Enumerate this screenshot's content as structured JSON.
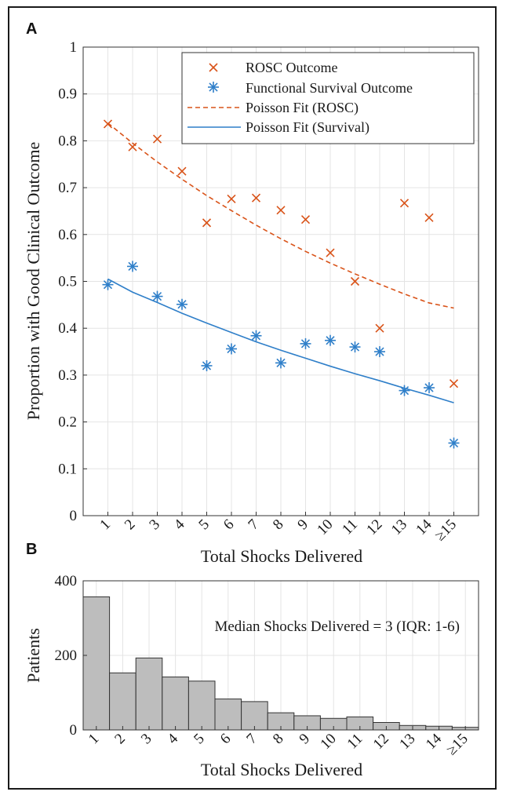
{
  "panels": [
    {
      "label": "A"
    },
    {
      "label": "B"
    }
  ],
  "colors": {
    "rosc": "#d95319",
    "survival": "#2f7fc9",
    "bar_fill": "#bdbdbd",
    "bar_edge": "#333333"
  },
  "chart_data": [
    {
      "type": "scatter",
      "panel": "A",
      "categories": [
        "1",
        "2",
        "3",
        "4",
        "5",
        "6",
        "7",
        "8",
        "9",
        "10",
        "11",
        "12",
        "13",
        "14",
        "≥15"
      ],
      "xlabel": "Total Shocks Delivered",
      "ylabel": "Proportion with Good Clinical Outcome",
      "ylim": [
        0,
        1
      ],
      "yticks": [
        0,
        0.1,
        0.2,
        0.3,
        0.4,
        0.5,
        0.6,
        0.7,
        0.8,
        0.9,
        1
      ],
      "ytick_labels": [
        "0",
        "0.1",
        "0.2",
        "0.3",
        "0.4",
        "0.5",
        "0.6",
        "0.7",
        "0.8",
        "0.9",
        "1"
      ],
      "grid": true,
      "legend_position": "top-right",
      "series": [
        {
          "name": "ROSC Outcome",
          "kind": "points",
          "marker": "x",
          "color": "#d95319",
          "values": [
            0.836,
            0.787,
            0.804,
            0.735,
            0.625,
            0.676,
            0.678,
            0.652,
            0.632,
            0.561,
            0.5,
            0.4,
            0.667,
            0.636,
            0.282
          ]
        },
        {
          "name": "Functional Survival Outcome",
          "kind": "points",
          "marker": "*",
          "color": "#2f7fc9",
          "values": [
            0.493,
            0.532,
            0.468,
            0.451,
            0.32,
            0.356,
            0.384,
            0.326,
            0.367,
            0.374,
            0.36,
            0.35,
            0.267,
            0.273,
            0.155
          ]
        },
        {
          "name": "Poisson Fit (ROSC)",
          "kind": "line",
          "dash": "dashed",
          "color": "#d95319",
          "values": [
            0.838,
            0.795,
            0.755,
            0.718,
            0.683,
            0.651,
            0.62,
            0.591,
            0.564,
            0.539,
            0.516,
            0.494,
            0.473,
            0.454,
            0.443
          ]
        },
        {
          "name": "Poisson Fit (Survival)",
          "kind": "line",
          "dash": "solid",
          "color": "#2f7fc9",
          "values": [
            0.505,
            0.477,
            0.455,
            0.432,
            0.411,
            0.391,
            0.371,
            0.353,
            0.336,
            0.319,
            0.303,
            0.288,
            0.272,
            0.257,
            0.241
          ]
        }
      ]
    },
    {
      "type": "bar",
      "panel": "B",
      "categories": [
        "1",
        "2",
        "3",
        "4",
        "5",
        "6",
        "7",
        "8",
        "9",
        "10",
        "11",
        "12",
        "13",
        "14",
        "≥15"
      ],
      "values": [
        357,
        153,
        193,
        142,
        131,
        83,
        76,
        46,
        38,
        31,
        35,
        20,
        12,
        10,
        7
      ],
      "xlabel": "Total Shocks Delivered",
      "ylabel": "Patients",
      "ylim": [
        0,
        400
      ],
      "yticks": [
        0,
        200,
        400
      ],
      "ytick_labels": [
        "0",
        "200",
        "400"
      ],
      "grid": true,
      "annotation": "Median Shocks Delivered = 3 (IQR: 1-6)"
    }
  ]
}
